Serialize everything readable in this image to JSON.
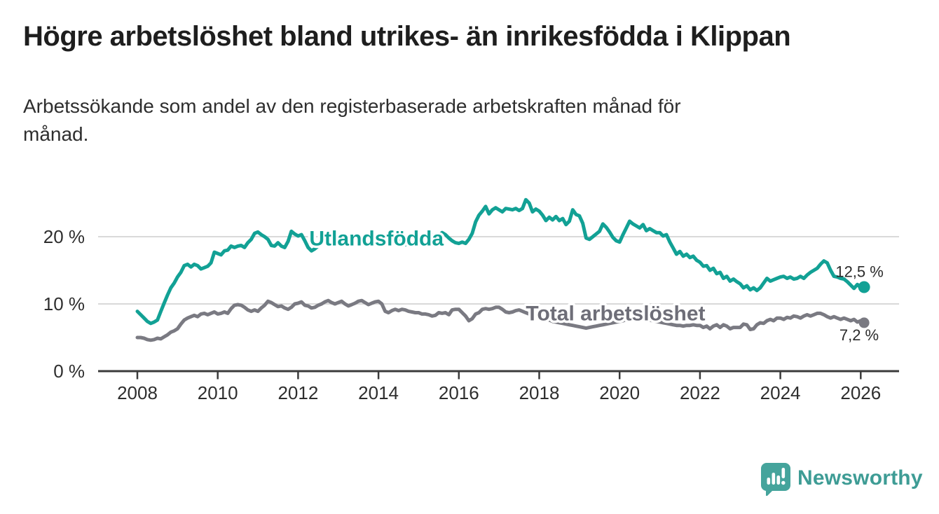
{
  "header": {
    "title": "Högre arbetslöshet bland utrikes- än inrikesfödda i Klippan",
    "subtitle": "Arbetssökande som andel av den registerbaserade arbetskraften månad för\nmånad."
  },
  "branding": {
    "logo_text": "Newsworthy",
    "logo_icon": "bar-chart-speech-bubble-icon",
    "logo_color": "#45a49c"
  },
  "chart_data": {
    "type": "line",
    "title": "Högre arbetslöshet bland utrikes- än inrikesfödda i Klippan",
    "xlabel": "",
    "ylabel": "Arbetssökande som andel av den registerbaserade arbetskraften",
    "x_start": 2008.0,
    "x_step": 0.0833333,
    "x_end": 2026.083,
    "grid": "horizontal",
    "x_axis": {
      "ticks": [
        2008,
        2010,
        2012,
        2014,
        2016,
        2018,
        2020,
        2022,
        2024,
        2026
      ],
      "labels": [
        "2008",
        "2010",
        "2012",
        "2014",
        "2016",
        "2018",
        "2020",
        "2022",
        "2024",
        "2026"
      ]
    },
    "y_axis": {
      "ticks": [
        0,
        10,
        20
      ],
      "labels": [
        "0 %",
        "10 %",
        "20 %"
      ],
      "range": [
        0,
        26.5
      ]
    },
    "style": {
      "grid_color": "#d9d9d9",
      "axis_color": "#3b3b3b",
      "tick_text_color": "#2e2e2e",
      "value_label_color": "#2b2b2b"
    },
    "series": [
      {
        "id": "utlandsfodda",
        "name": "Utlandsfödda",
        "color": "#12a195",
        "end_label": "12,5 %",
        "end_value": 12.5,
        "label_at": {
          "year": 2013.95,
          "pct": 19.7
        },
        "end_label_at": {
          "year": 2025.97,
          "pct": 14.8
        },
        "marker_radius": 8.5,
        "values": [
          8.9,
          8.4,
          7.9,
          7.4,
          7.1,
          7.3,
          7.6,
          8.9,
          10.1,
          11.3,
          12.4,
          13.1,
          14.0,
          14.7,
          15.7,
          15.9,
          15.5,
          15.9,
          15.7,
          15.2,
          15.4,
          15.6,
          16.1,
          17.7,
          17.5,
          17.3,
          17.9,
          18.0,
          18.6,
          18.4,
          18.6,
          18.7,
          18.4,
          19.1,
          19.6,
          20.5,
          20.7,
          20.3,
          20.0,
          19.6,
          18.7,
          18.6,
          19.1,
          18.6,
          18.4,
          19.3,
          20.8,
          20.4,
          20.1,
          20.3,
          19.4,
          18.4,
          17.9,
          18.2,
          18.6,
          18.9,
          19.2,
          19.0,
          18.7,
          19.0,
          19.3,
          19.6,
          19.4,
          19.1,
          19.5,
          19.8,
          19.6,
          19.3,
          19.7,
          20.1,
          19.8,
          19.5,
          19.9,
          20.4,
          20.1,
          19.7,
          19.3,
          19.0,
          19.4,
          19.1,
          18.8,
          19.2,
          19.6,
          19.3,
          19.6,
          20.0,
          20.4,
          20.7,
          20.3,
          19.9,
          20.2,
          20.6,
          20.3,
          19.8,
          19.4,
          19.1,
          19.0,
          19.2,
          19.0,
          19.6,
          20.5,
          22.2,
          23.2,
          23.8,
          24.5,
          23.4,
          24.0,
          24.3,
          24.0,
          23.7,
          24.2,
          24.1,
          24.0,
          24.2,
          23.9,
          24.2,
          25.5,
          25.0,
          23.7,
          24.1,
          23.8,
          23.2,
          22.4,
          22.9,
          22.5,
          23.0,
          22.4,
          22.7,
          21.8,
          22.3,
          24.0,
          23.3,
          23.1,
          22.0,
          19.8,
          19.6,
          20.0,
          20.4,
          20.8,
          21.9,
          21.4,
          20.7,
          19.9,
          19.4,
          19.2,
          20.3,
          21.3,
          22.3,
          21.9,
          21.6,
          21.3,
          21.8,
          20.9,
          21.2,
          20.9,
          20.6,
          20.6,
          20.1,
          20.3,
          19.2,
          18.3,
          17.4,
          17.8,
          17.1,
          17.4,
          16.9,
          17.1,
          16.5,
          16.2,
          15.6,
          15.7,
          15.0,
          15.3,
          14.5,
          14.7,
          13.8,
          14.1,
          13.4,
          13.7,
          13.3,
          13.0,
          12.4,
          12.7,
          12.1,
          12.4,
          12.0,
          12.4,
          13.1,
          13.8,
          13.4,
          13.6,
          13.8,
          14.0,
          14.1,
          13.8,
          14.0,
          13.7,
          13.8,
          14.1,
          13.8,
          14.3,
          14.7,
          15.0,
          15.3,
          15.9,
          16.4,
          16.1,
          15.0,
          14.1,
          14.0,
          13.8,
          13.7,
          13.3,
          12.8,
          12.3,
          12.9,
          12.4,
          12.5
        ]
      },
      {
        "id": "total-arbetsloshet",
        "name": "Total arbetslöshet",
        "color": "#7a7a82",
        "label_color": "#6e6e78",
        "end_label": "7,2 %",
        "end_value": 7.2,
        "label_at": {
          "year": 2019.9,
          "pct": 8.55
        },
        "end_label_at": {
          "year": 2025.96,
          "pct": 5.35
        },
        "marker_radius": 7.5,
        "values": [
          5.0,
          5.0,
          4.9,
          4.7,
          4.6,
          4.7,
          4.9,
          4.8,
          5.1,
          5.4,
          5.8,
          6.0,
          6.3,
          7.0,
          7.6,
          7.9,
          8.1,
          8.3,
          8.1,
          8.5,
          8.6,
          8.4,
          8.6,
          8.8,
          8.5,
          8.6,
          8.8,
          8.6,
          9.3,
          9.8,
          9.9,
          9.8,
          9.5,
          9.1,
          8.9,
          9.1,
          8.9,
          9.4,
          9.8,
          10.4,
          10.2,
          9.9,
          9.6,
          9.7,
          9.4,
          9.2,
          9.5,
          10.0,
          10.1,
          10.3,
          9.8,
          9.7,
          9.4,
          9.5,
          9.8,
          10.0,
          10.3,
          10.5,
          10.2,
          10.0,
          10.2,
          10.4,
          10.0,
          9.7,
          9.9,
          10.1,
          10.4,
          10.5,
          10.2,
          9.9,
          10.1,
          10.3,
          10.4,
          10.0,
          8.9,
          8.7,
          9.0,
          9.2,
          9.0,
          9.2,
          9.1,
          8.9,
          8.8,
          8.7,
          8.7,
          8.5,
          8.5,
          8.4,
          8.2,
          8.3,
          8.7,
          8.6,
          8.7,
          8.4,
          9.1,
          9.2,
          9.2,
          8.7,
          8.2,
          7.5,
          7.8,
          8.5,
          8.7,
          9.2,
          9.3,
          9.2,
          9.3,
          9.5,
          9.5,
          9.2,
          8.8,
          8.7,
          8.8,
          9.0,
          9.1,
          8.9,
          8.7,
          8.5,
          8.3,
          8.2,
          8.0,
          7.9,
          7.7,
          7.6,
          7.4,
          7.3,
          7.2,
          7.1,
          7.0,
          6.9,
          6.8,
          6.7,
          6.6,
          6.5,
          6.4,
          6.5,
          6.6,
          6.7,
          6.8,
          6.9,
          7.0,
          7.1,
          7.2,
          7.3,
          7.4,
          7.5,
          7.7,
          8.0,
          8.1,
          8.0,
          7.9,
          7.8,
          7.7,
          7.6,
          7.5,
          7.4,
          7.3,
          7.2,
          7.1,
          7.0,
          6.9,
          6.8,
          6.8,
          6.7,
          6.8,
          6.8,
          6.9,
          6.8,
          6.8,
          6.5,
          6.7,
          6.3,
          6.7,
          6.9,
          6.5,
          6.9,
          6.7,
          6.3,
          6.5,
          6.5,
          6.5,
          7.0,
          6.9,
          6.2,
          6.3,
          6.9,
          7.2,
          7.1,
          7.5,
          7.7,
          7.5,
          7.9,
          7.9,
          7.7,
          8.0,
          7.9,
          8.2,
          8.1,
          7.9,
          8.2,
          8.4,
          8.2,
          8.4,
          8.6,
          8.6,
          8.4,
          8.1,
          7.9,
          8.1,
          7.9,
          7.7,
          7.9,
          7.7,
          7.5,
          7.7,
          7.3,
          7.5,
          7.2
        ]
      }
    ]
  }
}
